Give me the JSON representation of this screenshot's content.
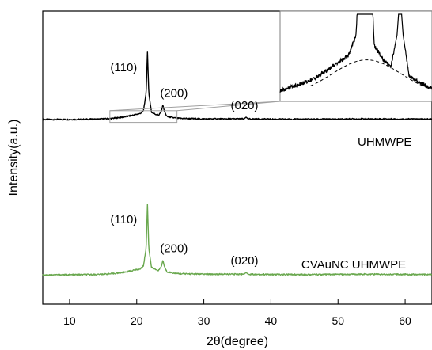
{
  "chart_data": {
    "type": "line",
    "xlabel": "2θ(degree)",
    "ylabel": "Intensity(a.u.)",
    "xlim": [
      6,
      64
    ],
    "xticks": [
      10,
      20,
      30,
      40,
      50,
      60
    ],
    "y_tick_labels": false,
    "series": [
      {
        "name": "UHMWPE",
        "color": "#000000",
        "baseline": 0.63,
        "points": [
          [
            6,
            0.63
          ],
          [
            10,
            0.63
          ],
          [
            14,
            0.631
          ],
          [
            16,
            0.633
          ],
          [
            18,
            0.638
          ],
          [
            19.5,
            0.645
          ],
          [
            20.5,
            0.65
          ],
          [
            21.0,
            0.66
          ],
          [
            21.4,
            0.72
          ],
          [
            21.6,
            0.86
          ],
          [
            21.8,
            0.72
          ],
          [
            22.2,
            0.655
          ],
          [
            22.8,
            0.648
          ],
          [
            23.3,
            0.645
          ],
          [
            23.7,
            0.66
          ],
          [
            23.9,
            0.68
          ],
          [
            24.1,
            0.66
          ],
          [
            24.5,
            0.64
          ],
          [
            26,
            0.634
          ],
          [
            30,
            0.632
          ],
          [
            36.0,
            0.632
          ],
          [
            36.3,
            0.638
          ],
          [
            36.6,
            0.632
          ],
          [
            40,
            0.631
          ],
          [
            50,
            0.631
          ],
          [
            53,
            0.632
          ],
          [
            64,
            0.631
          ]
        ],
        "peaks": [
          {
            "label": "(110)",
            "x": 21.6,
            "y": 0.86
          },
          {
            "label": "(200)",
            "x": 23.9,
            "y": 0.68
          },
          {
            "label": "(020)",
            "x": 36.3,
            "y": 0.638
          }
        ]
      },
      {
        "name": "CVAuNC UHMWPE",
        "color": "#6aa84f",
        "baseline": 0.1,
        "points": [
          [
            6,
            0.1
          ],
          [
            10,
            0.1
          ],
          [
            14,
            0.101
          ],
          [
            16,
            0.103
          ],
          [
            18,
            0.108
          ],
          [
            19.5,
            0.115
          ],
          [
            20.5,
            0.12
          ],
          [
            21.0,
            0.13
          ],
          [
            21.4,
            0.19
          ],
          [
            21.6,
            0.34
          ],
          [
            21.8,
            0.19
          ],
          [
            22.2,
            0.125
          ],
          [
            22.8,
            0.118
          ],
          [
            23.3,
            0.115
          ],
          [
            23.7,
            0.13
          ],
          [
            23.9,
            0.15
          ],
          [
            24.1,
            0.13
          ],
          [
            24.5,
            0.11
          ],
          [
            26,
            0.104
          ],
          [
            30,
            0.102
          ],
          [
            36.0,
            0.102
          ],
          [
            36.3,
            0.108
          ],
          [
            36.6,
            0.102
          ],
          [
            40,
            0.101
          ],
          [
            50,
            0.101
          ],
          [
            53,
            0.102
          ],
          [
            64,
            0.101
          ]
        ],
        "peaks": [
          {
            "label": "(110)",
            "x": 21.6,
            "y": 0.34
          },
          {
            "label": "(200)",
            "x": 23.9,
            "y": 0.15
          },
          {
            "label": "(020)",
            "x": 36.3,
            "y": 0.108
          }
        ]
      }
    ],
    "inset": {
      "x_range": [
        16,
        26
      ],
      "dashed_background": true
    }
  }
}
